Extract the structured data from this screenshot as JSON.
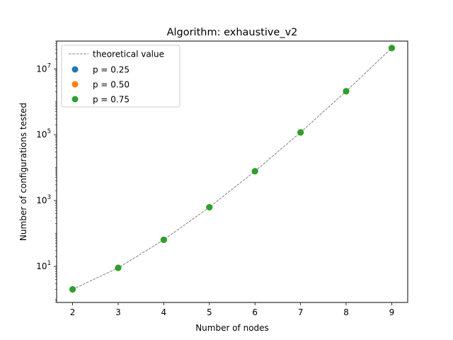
{
  "chart_data": {
    "type": "scatter",
    "title": "Algorithm: exhaustive_v2",
    "xlabel": "Number of nodes",
    "ylabel": "Number of configurations tested",
    "x_ticks": [
      2,
      3,
      4,
      5,
      6,
      7,
      8,
      9
    ],
    "y_scale": "log",
    "y_ticks": [
      "10^1",
      "10^3",
      "10^5",
      "10^7"
    ],
    "xlim": [
      1.65,
      9.35
    ],
    "ylim": [
      0.8,
      70000000
    ],
    "grid": false,
    "legend_position": "top-left",
    "theoretical": {
      "name": "theoretical value",
      "color": "#808080",
      "style": "dashed",
      "x": [
        2,
        3,
        4,
        5,
        6,
        7,
        8,
        9
      ],
      "y": [
        2,
        9,
        64,
        625,
        7776,
        117649,
        2097152,
        43046721
      ]
    },
    "series": [
      {
        "name": "p = 0.25",
        "color": "#1f77b4",
        "x": [
          2,
          3,
          4,
          5,
          6,
          7,
          8,
          9
        ],
        "y": [
          2,
          9,
          64,
          625,
          7776,
          117649,
          2097152,
          43046721
        ]
      },
      {
        "name": "p = 0.50",
        "color": "#ff7f0e",
        "x": [
          2,
          3,
          4,
          5,
          6,
          7,
          8,
          9
        ],
        "y": [
          2,
          9,
          64,
          625,
          7776,
          117649,
          2097152,
          43046721
        ]
      },
      {
        "name": "p = 0.75",
        "color": "#2ca02c",
        "x": [
          2,
          3,
          4,
          5,
          6,
          7,
          8,
          9
        ],
        "y": [
          2,
          9,
          64,
          625,
          7776,
          117649,
          2097152,
          43046721
        ]
      }
    ]
  }
}
